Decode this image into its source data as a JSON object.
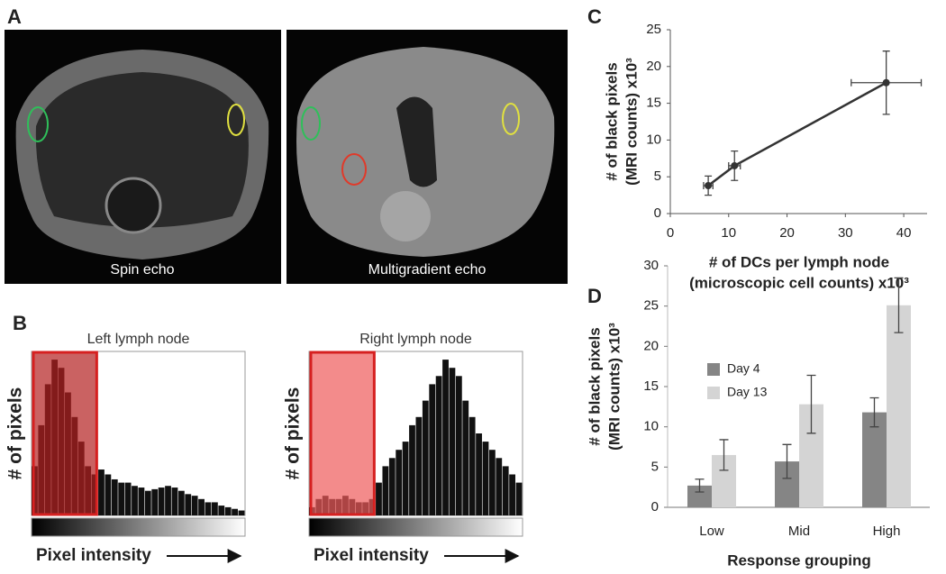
{
  "panel_a": {
    "label": "A",
    "captions": [
      "Spin echo",
      "Multigradient echo"
    ]
  },
  "chart_data": [
    {
      "type": "histogram",
      "panel": "B",
      "title": "Left lymph node",
      "xlabel": "Pixel intensity",
      "ylabel": "# of pixels",
      "bins": [
        0,
        8,
        16,
        24,
        32,
        40,
        48,
        56,
        64,
        72,
        80,
        88,
        96,
        104,
        112,
        120,
        128,
        136,
        144,
        152,
        160,
        168,
        176,
        184,
        192,
        200,
        208,
        216,
        224,
        232,
        240,
        248,
        256
      ],
      "counts": [
        30,
        55,
        80,
        95,
        90,
        75,
        60,
        45,
        30,
        25,
        28,
        25,
        22,
        20,
        20,
        18,
        17,
        15,
        16,
        17,
        18,
        17,
        15,
        13,
        12,
        10,
        8,
        8,
        6,
        5,
        4,
        3
      ],
      "color": "#111111",
      "xlim": [
        0,
        256
      ],
      "ylim": [
        0,
        100
      ],
      "highlight": [
        0,
        76
      ],
      "highlight_color": "#b32020"
    },
    {
      "type": "histogram",
      "title": "Right lymph node",
      "xlabel": "Pixel intensity",
      "ylabel": "# of pixels",
      "bins": [
        0,
        8,
        16,
        24,
        32,
        40,
        48,
        56,
        64,
        72,
        80,
        88,
        96,
        104,
        112,
        120,
        128,
        136,
        144,
        152,
        160,
        168,
        176,
        184,
        192,
        200,
        208,
        216,
        224,
        232,
        240,
        248,
        256
      ],
      "counts": [
        5,
        10,
        12,
        10,
        10,
        12,
        10,
        8,
        8,
        10,
        20,
        30,
        35,
        40,
        45,
        55,
        60,
        70,
        80,
        85,
        95,
        90,
        85,
        70,
        60,
        50,
        45,
        40,
        35,
        30,
        25,
        20
      ],
      "color": "#111111",
      "xlim": [
        0,
        256
      ],
      "ylim": [
        0,
        100
      ],
      "highlight": [
        0,
        76
      ],
      "highlight_color": "#ee5a5a"
    },
    {
      "type": "scatter",
      "panel": "C",
      "line": true,
      "xlabel": [
        "# of DCs per lymph node",
        "(microscopic cell counts) x10³"
      ],
      "ylabel": [
        "# of black pixels",
        "(MRI counts) x10³"
      ],
      "x": [
        6.5,
        11,
        37
      ],
      "values": [
        3.8,
        6.5,
        17.8
      ],
      "x_err": [
        0.8,
        1,
        6
      ],
      "y_err": [
        1.3,
        2,
        4.3
      ],
      "color": "#333333",
      "xlim": [
        0,
        44
      ],
      "ylim": [
        0,
        25
      ],
      "xticks": [
        0,
        10,
        20,
        30,
        40
      ],
      "yticks": [
        0,
        5,
        10,
        15,
        20,
        25
      ]
    },
    {
      "type": "bar",
      "panel": "D",
      "xlabel": "Response grouping",
      "ylabel": [
        "# of black pixels",
        "(MRI counts) x10³"
      ],
      "categories": [
        "Low",
        "Mid",
        "High"
      ],
      "series": [
        {
          "name": "Day 4",
          "color": "#858585",
          "values": [
            2.7,
            5.7,
            11.8
          ],
          "errors": [
            0.8,
            2.1,
            1.8
          ]
        },
        {
          "name": "Day 13",
          "color": "#d4d4d4",
          "values": [
            6.5,
            12.8,
            25.1
          ],
          "errors": [
            1.9,
            3.6,
            3.4
          ]
        }
      ],
      "ylim": [
        0,
        30
      ],
      "yticks": [
        0,
        5,
        10,
        15,
        20,
        25,
        30
      ],
      "legend": "upper-left"
    }
  ]
}
